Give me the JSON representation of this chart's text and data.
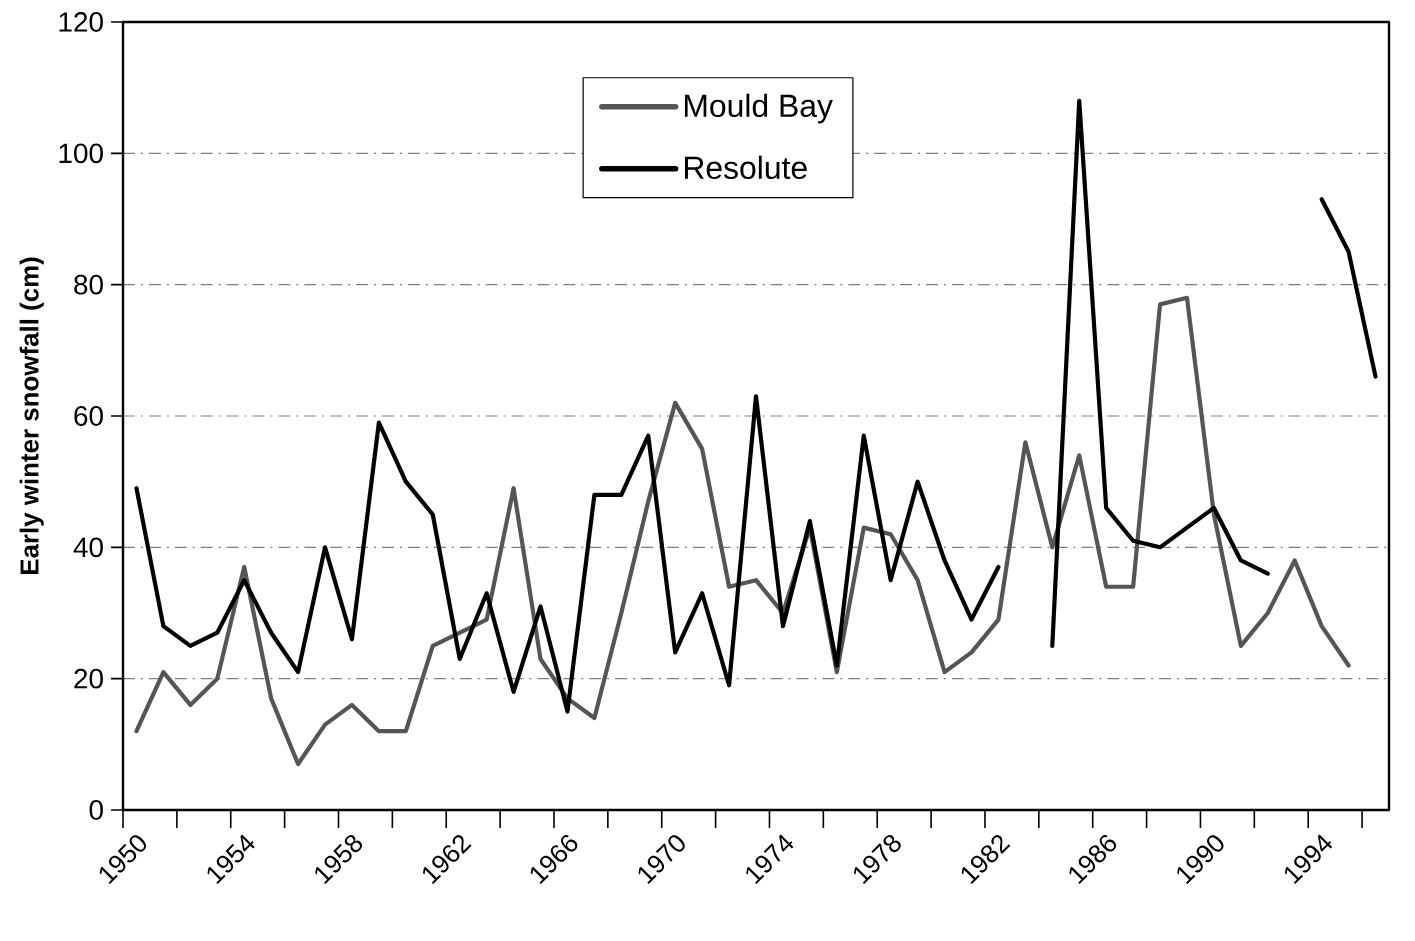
{
  "chart_data": {
    "type": "line",
    "ylabel": "Early winter snowfall (cm)",
    "categories": [
      "1950",
      null,
      null,
      null,
      "1954",
      null,
      null,
      null,
      "1958",
      null,
      null,
      null,
      "1962",
      null,
      null,
      null,
      "1966",
      null,
      null,
      null,
      "1970",
      null,
      null,
      null,
      "1974",
      null,
      null,
      null,
      "1978",
      null,
      null,
      null,
      "1982",
      null,
      null,
      null,
      "1986",
      null,
      null,
      null,
      "1990",
      null,
      null,
      null,
      "1994",
      null,
      null
    ],
    "series": [
      {
        "name": "Mould Bay",
        "color": "#555555",
        "values": [
          12,
          21,
          16,
          20,
          37,
          17,
          7,
          13,
          16,
          12,
          12,
          25,
          27,
          29,
          49,
          23,
          17,
          14,
          30,
          47,
          62,
          55,
          34,
          35,
          30,
          43,
          21,
          43,
          42,
          35,
          21,
          24,
          29,
          56,
          40,
          54,
          34,
          34,
          77,
          78,
          45,
          25,
          30,
          38,
          28,
          22,
          null
        ]
      },
      {
        "name": "Resolute",
        "color": "#000000",
        "values": [
          49,
          28,
          25,
          27,
          35,
          27,
          21,
          40,
          26,
          59,
          50,
          45,
          23,
          33,
          18,
          31,
          15,
          48,
          48,
          57,
          24,
          33,
          19,
          63,
          28,
          44,
          22,
          57,
          35,
          50,
          38,
          29,
          37,
          null,
          25,
          108,
          46,
          41,
          40,
          43,
          46,
          38,
          36,
          null,
          93,
          85,
          66
        ]
      }
    ],
    "ylim": [
      0,
      120
    ],
    "yticks": [
      0,
      20,
      40,
      60,
      80,
      100,
      120
    ],
    "grid": "y",
    "legend": "top",
    "marker": "none",
    "line_style": "solid"
  }
}
